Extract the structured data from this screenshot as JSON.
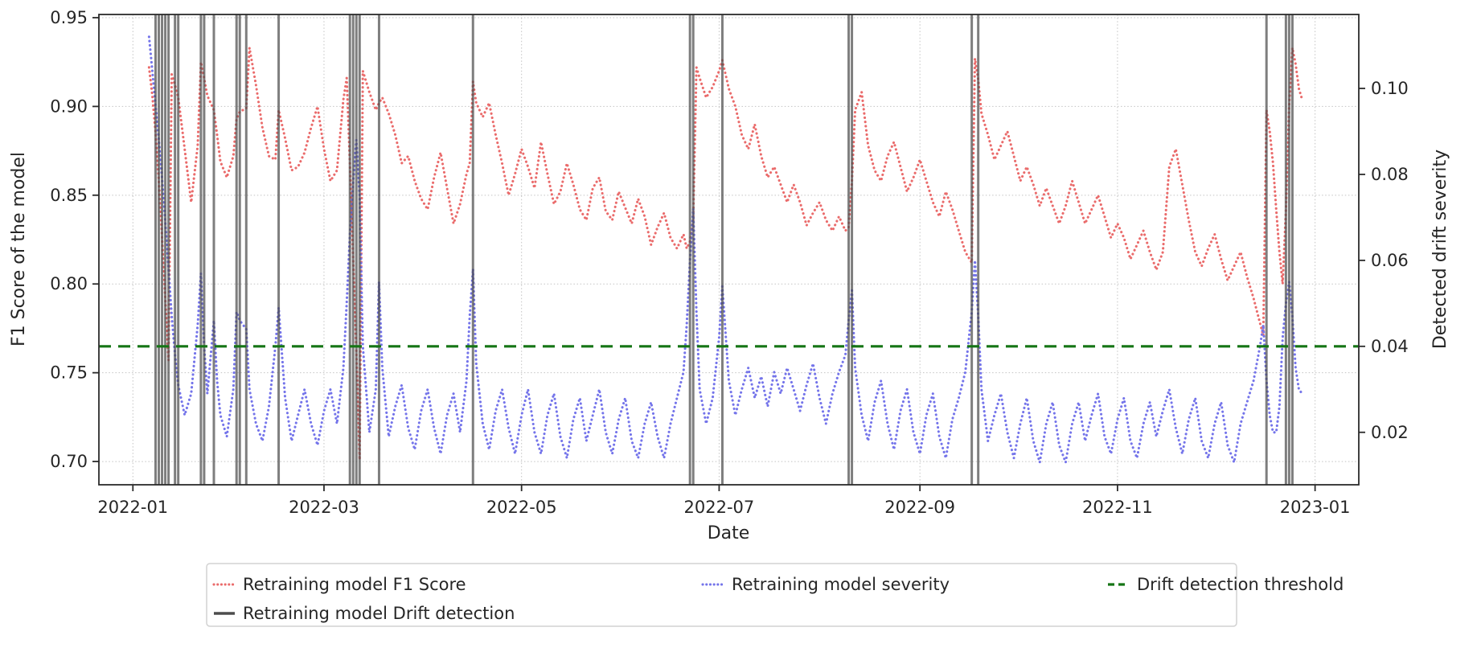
{
  "chart_data": {
    "type": "line",
    "title": "",
    "xlabel": "Date",
    "ylabel_left": "F1 Score of the model",
    "ylabel_right": "Detected drift severity",
    "grid": true,
    "legend_position": "bottom",
    "x_ticks": [
      "2022-01",
      "2022-03",
      "2022-05",
      "2022-07",
      "2022-09",
      "2022-11",
      "2023-01"
    ],
    "x_tick_days": [
      0,
      59,
      120,
      181,
      243,
      304,
      365
    ],
    "x_range_days": [
      -10.5,
      378.5
    ],
    "y_left_tick_labels": [
      "0.95",
      "0.90",
      "0.85",
      "0.80",
      "0.75",
      "0.70"
    ],
    "y_left_tick_values": [
      0.95,
      0.9,
      0.85,
      0.8,
      0.75,
      0.7
    ],
    "y_left_range": [
      0.6869,
      0.9518
    ],
    "y_right_tick_labels": [
      "0.10",
      "0.08",
      "0.06",
      "0.04",
      "0.02"
    ],
    "y_right_tick_values": [
      0.1,
      0.08,
      0.06,
      0.04,
      0.02
    ],
    "y_right_range": [
      0.0078,
      0.1172
    ],
    "threshold": {
      "name": "Drift detection threshold",
      "value": 0.04,
      "axis": "right",
      "color": "#157515"
    },
    "detections": {
      "name": "Retraining model Drift detection",
      "color": "#4d4d4d",
      "days": [
        7,
        8,
        9,
        10,
        11,
        13,
        14,
        21,
        22,
        25,
        32,
        33,
        35,
        45,
        67,
        68,
        69,
        70,
        76,
        105,
        172,
        173,
        182,
        221,
        222,
        259,
        261,
        350,
        356,
        357,
        358
      ]
    },
    "x_days": [
      5,
      6,
      7,
      8,
      9,
      10,
      11,
      12,
      13,
      14,
      16,
      18,
      20,
      21,
      22,
      23,
      25,
      26,
      27,
      29,
      31,
      32,
      33,
      35,
      36,
      38,
      40,
      42,
      44,
      45,
      47,
      49,
      51,
      53,
      55,
      57,
      59,
      61,
      63,
      65,
      66,
      67,
      68,
      69,
      70,
      71,
      73,
      75,
      76,
      77,
      79,
      81,
      83,
      85,
      87,
      89,
      91,
      93,
      95,
      97,
      99,
      101,
      103,
      104,
      105,
      106,
      108,
      110,
      112,
      114,
      116,
      118,
      120,
      122,
      124,
      126,
      128,
      130,
      132,
      134,
      136,
      138,
      140,
      142,
      144,
      146,
      148,
      150,
      152,
      154,
      156,
      158,
      160,
      162,
      164,
      166,
      168,
      170,
      171,
      172,
      173,
      174,
      175,
      177,
      179,
      181,
      182,
      184,
      186,
      188,
      190,
      192,
      194,
      196,
      198,
      200,
      202,
      204,
      206,
      208,
      210,
      212,
      214,
      216,
      218,
      220,
      221,
      222,
      223,
      225,
      227,
      229,
      231,
      233,
      235,
      237,
      239,
      241,
      243,
      245,
      247,
      249,
      251,
      253,
      255,
      257,
      259,
      260,
      261,
      262,
      264,
      266,
      268,
      270,
      272,
      274,
      276,
      278,
      280,
      282,
      284,
      286,
      288,
      290,
      292,
      294,
      296,
      298,
      300,
      302,
      304,
      306,
      308,
      310,
      312,
      314,
      316,
      318,
      320,
      322,
      324,
      326,
      328,
      330,
      332,
      334,
      336,
      338,
      340,
      342,
      344,
      346,
      348,
      349,
      350,
      351,
      352,
      353,
      354,
      355,
      356,
      357,
      358,
      359,
      360,
      361
    ],
    "series": [
      {
        "name": "Retraining model F1 Score",
        "axis": "left",
        "color": "#ea6b6b",
        "style": "dotted",
        "values": [
          0.922,
          0.906,
          0.885,
          0.858,
          0.826,
          0.792,
          0.757,
          0.918,
          0.912,
          0.905,
          0.876,
          0.846,
          0.878,
          0.925,
          0.916,
          0.906,
          0.898,
          0.884,
          0.869,
          0.86,
          0.872,
          0.893,
          0.897,
          0.899,
          0.933,
          0.912,
          0.888,
          0.872,
          0.87,
          0.898,
          0.882,
          0.864,
          0.866,
          0.874,
          0.888,
          0.9,
          0.876,
          0.858,
          0.864,
          0.904,
          0.916,
          0.868,
          0.815,
          0.762,
          0.701,
          0.92,
          0.908,
          0.898,
          0.902,
          0.905,
          0.896,
          0.884,
          0.868,
          0.872,
          0.858,
          0.848,
          0.842,
          0.86,
          0.874,
          0.854,
          0.834,
          0.845,
          0.862,
          0.868,
          0.914,
          0.902,
          0.894,
          0.902,
          0.884,
          0.868,
          0.85,
          0.862,
          0.876,
          0.866,
          0.854,
          0.88,
          0.862,
          0.845,
          0.852,
          0.868,
          0.856,
          0.842,
          0.836,
          0.854,
          0.86,
          0.841,
          0.836,
          0.852,
          0.843,
          0.834,
          0.848,
          0.838,
          0.822,
          0.832,
          0.84,
          0.826,
          0.82,
          0.828,
          0.82,
          0.824,
          0.836,
          0.922,
          0.916,
          0.905,
          0.911,
          0.92,
          0.926,
          0.91,
          0.9,
          0.884,
          0.876,
          0.89,
          0.872,
          0.86,
          0.866,
          0.856,
          0.846,
          0.856,
          0.846,
          0.833,
          0.84,
          0.846,
          0.836,
          0.83,
          0.838,
          0.83,
          0.832,
          0.858,
          0.898,
          0.908,
          0.878,
          0.864,
          0.858,
          0.872,
          0.88,
          0.866,
          0.852,
          0.86,
          0.87,
          0.858,
          0.846,
          0.838,
          0.852,
          0.842,
          0.83,
          0.818,
          0.812,
          0.927,
          0.915,
          0.896,
          0.884,
          0.87,
          0.878,
          0.886,
          0.872,
          0.858,
          0.866,
          0.856,
          0.844,
          0.854,
          0.844,
          0.834,
          0.844,
          0.858,
          0.846,
          0.834,
          0.842,
          0.85,
          0.838,
          0.826,
          0.834,
          0.826,
          0.814,
          0.822,
          0.83,
          0.818,
          0.808,
          0.818,
          0.866,
          0.876,
          0.856,
          0.836,
          0.818,
          0.81,
          0.82,
          0.828,
          0.814,
          0.802,
          0.81,
          0.818,
          0.804,
          0.792,
          0.778,
          0.771,
          0.898,
          0.886,
          0.868,
          0.842,
          0.818,
          0.8,
          0.842,
          0.9,
          0.933,
          0.924,
          0.91,
          0.904
        ]
      },
      {
        "name": "Retraining model severity",
        "axis": "right",
        "color": "#7474ea",
        "style": "dotted",
        "values": [
          0.112,
          0.104,
          0.096,
          0.088,
          0.079,
          0.069,
          0.058,
          0.047,
          0.038,
          0.031,
          0.024,
          0.029,
          0.045,
          0.057,
          0.04,
          0.029,
          0.046,
          0.032,
          0.024,
          0.019,
          0.03,
          0.048,
          0.046,
          0.044,
          0.03,
          0.022,
          0.018,
          0.026,
          0.04,
          0.049,
          0.028,
          0.018,
          0.024,
          0.03,
          0.022,
          0.017,
          0.025,
          0.03,
          0.022,
          0.035,
          0.05,
          0.066,
          0.078,
          0.088,
          0.075,
          0.04,
          0.02,
          0.03,
          0.055,
          0.035,
          0.019,
          0.026,
          0.031,
          0.021,
          0.016,
          0.025,
          0.03,
          0.021,
          0.015,
          0.024,
          0.029,
          0.02,
          0.032,
          0.047,
          0.058,
          0.036,
          0.022,
          0.016,
          0.025,
          0.03,
          0.021,
          0.015,
          0.024,
          0.03,
          0.02,
          0.015,
          0.024,
          0.029,
          0.019,
          0.014,
          0.023,
          0.028,
          0.018,
          0.024,
          0.03,
          0.02,
          0.015,
          0.023,
          0.028,
          0.018,
          0.014,
          0.022,
          0.027,
          0.019,
          0.014,
          0.022,
          0.028,
          0.034,
          0.045,
          0.06,
          0.072,
          0.048,
          0.03,
          0.022,
          0.028,
          0.042,
          0.054,
          0.032,
          0.024,
          0.03,
          0.035,
          0.028,
          0.033,
          0.026,
          0.034,
          0.029,
          0.035,
          0.03,
          0.025,
          0.031,
          0.036,
          0.028,
          0.022,
          0.029,
          0.034,
          0.038,
          0.046,
          0.053,
          0.035,
          0.024,
          0.018,
          0.027,
          0.032,
          0.022,
          0.016,
          0.025,
          0.03,
          0.02,
          0.015,
          0.024,
          0.029,
          0.019,
          0.014,
          0.023,
          0.028,
          0.034,
          0.048,
          0.06,
          0.047,
          0.03,
          0.018,
          0.024,
          0.029,
          0.02,
          0.014,
          0.022,
          0.028,
          0.018,
          0.013,
          0.022,
          0.027,
          0.017,
          0.013,
          0.022,
          0.027,
          0.018,
          0.024,
          0.029,
          0.019,
          0.015,
          0.023,
          0.028,
          0.018,
          0.014,
          0.022,
          0.027,
          0.019,
          0.025,
          0.03,
          0.021,
          0.015,
          0.023,
          0.028,
          0.018,
          0.014,
          0.022,
          0.027,
          0.017,
          0.013,
          0.022,
          0.027,
          0.032,
          0.04,
          0.045,
          0.032,
          0.024,
          0.02,
          0.02,
          0.026,
          0.042,
          0.05,
          0.055,
          0.047,
          0.035,
          0.03,
          0.029
        ]
      }
    ],
    "legend": {
      "rows": [
        [
          "Retraining model F1 Score",
          "Retraining model severity",
          "Drift detection threshold"
        ],
        [
          "Retraining model Drift detection"
        ]
      ]
    }
  }
}
